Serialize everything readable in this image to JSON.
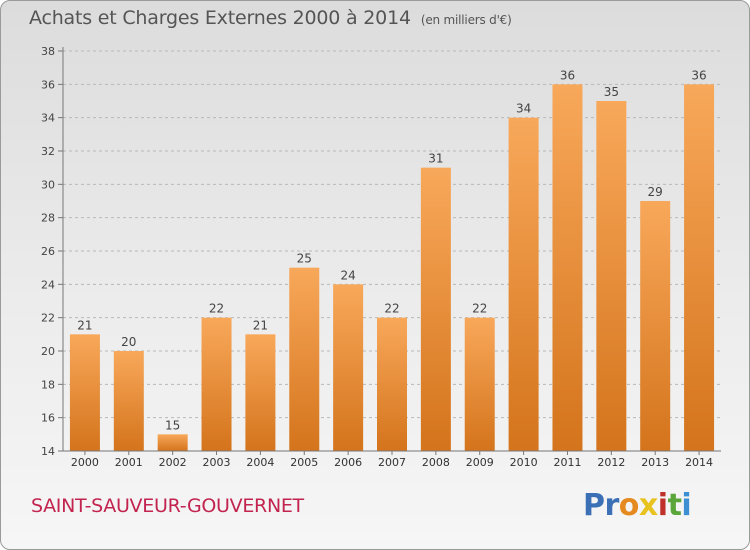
{
  "title": "Achats et Charges Externes 2000 à 2014",
  "subtitle": "(en milliers d'€)",
  "commune": "SAINT-SAUVEUR-GOUVERNET",
  "logo": {
    "text": "Proxiti",
    "parts": [
      "Pr",
      "o",
      "x",
      "i",
      "t",
      "i"
    ]
  },
  "colors": {
    "bar_light": "#f8a85a",
    "bar_dark": "#d4741c",
    "commune": "#c2244f"
  },
  "chart_data": {
    "type": "bar",
    "title": "Achats et Charges Externes 2000 à 2014",
    "subtitle": "(en milliers d'€)",
    "xlabel": "",
    "ylabel": "",
    "categories": [
      "2000",
      "2001",
      "2002",
      "2003",
      "2004",
      "2005",
      "2006",
      "2007",
      "2008",
      "2009",
      "2010",
      "2011",
      "2012",
      "2013",
      "2014"
    ],
    "values": [
      21,
      20,
      15,
      22,
      21,
      25,
      24,
      22,
      31,
      22,
      34,
      36,
      35,
      29,
      36
    ],
    "ylim": [
      14,
      38
    ],
    "yticks": [
      14,
      16,
      18,
      20,
      22,
      24,
      26,
      28,
      30,
      32,
      34,
      36,
      38
    ],
    "grid": true,
    "data_labels": true
  }
}
